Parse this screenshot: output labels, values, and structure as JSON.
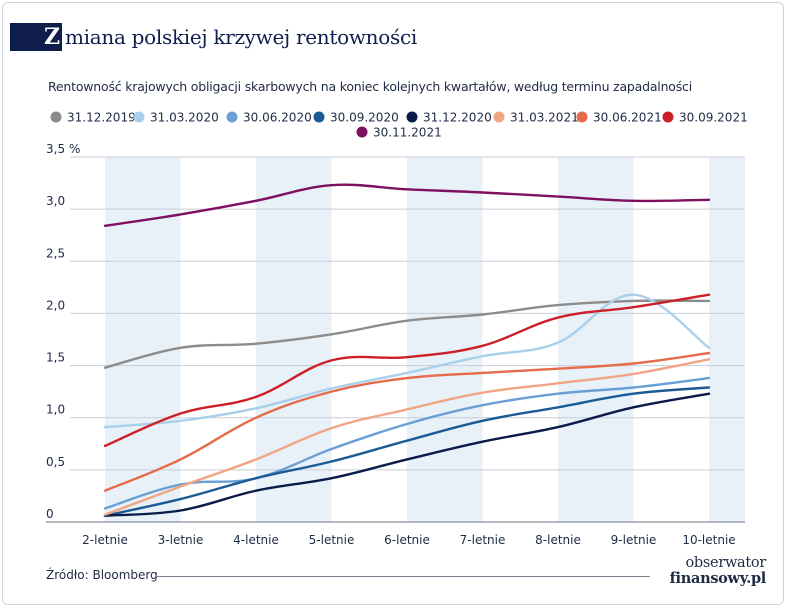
{
  "title_initial": "Z",
  "title_rest": "miana polskiej krzywej rentowności",
  "subtitle": "Rentowność krajowych obligacji skarbowych na koniec kolejnych kwartałów, według terminu zapadalności",
  "source": "Źródło: Bloomberg",
  "logo_line1": "obserwator",
  "logo_line2": "finansowy.pl",
  "colors": {
    "title_block": "#0f1d4d",
    "band": "#e8f0f8",
    "grid": "#c9ced8"
  },
  "chart_data": {
    "type": "line",
    "title": "Zmiana polskiej krzywej rentowności",
    "subtitle": "Rentowność krajowych obligacji skarbowych na koniec kolejnych kwartałów, według terminu zapadalności",
    "xlabel": "",
    "ylabel": "%",
    "ylim": [
      0,
      3.5
    ],
    "yticks": [
      "0",
      "0,5",
      "1,0",
      "1,5",
      "2,0",
      "2,5",
      "3,0",
      "3,5"
    ],
    "ytick_values": [
      0,
      0.5,
      1.0,
      1.5,
      2.0,
      2.5,
      3.0,
      3.5
    ],
    "y_unit": "%",
    "categories": [
      "2-letnie",
      "3-letnie",
      "4-letnie",
      "5-letnie",
      "6-letnie",
      "7-letnie",
      "8-letnie",
      "9-letnie",
      "10-letnie"
    ],
    "legend_position": "top",
    "series": [
      {
        "name": "31.12.2019",
        "color": "#8c8c8c",
        "values": [
          1.48,
          1.67,
          1.71,
          1.8,
          1.93,
          1.99,
          2.08,
          2.12,
          2.12
        ]
      },
      {
        "name": "31.03.2020",
        "color": "#a9d0ea",
        "values": [
          0.91,
          0.97,
          1.09,
          1.28,
          1.43,
          1.59,
          1.72,
          2.18,
          1.67
        ]
      },
      {
        "name": "30.06.2020",
        "color": "#6a9fd3",
        "values": [
          0.13,
          0.36,
          0.42,
          0.7,
          0.94,
          1.12,
          1.23,
          1.29,
          1.38
        ]
      },
      {
        "name": "30.09.2020",
        "color": "#1a5b96",
        "values": [
          0.06,
          0.22,
          0.42,
          0.58,
          0.78,
          0.97,
          1.1,
          1.23,
          1.29
        ]
      },
      {
        "name": "31.12.2020",
        "color": "#0a1a4a",
        "values": [
          0.06,
          0.11,
          0.3,
          0.42,
          0.6,
          0.77,
          0.91,
          1.1,
          1.23
        ]
      },
      {
        "name": "31.03.2021",
        "color": "#f0a583",
        "values": [
          0.07,
          0.34,
          0.6,
          0.9,
          1.08,
          1.24,
          1.33,
          1.42,
          1.56
        ]
      },
      {
        "name": "30.06.2021",
        "color": "#e56b4b",
        "values": [
          0.3,
          0.6,
          1.0,
          1.25,
          1.38,
          1.43,
          1.47,
          1.52,
          1.62
        ]
      },
      {
        "name": "30.09.2021",
        "color": "#cc1f27",
        "values": [
          0.73,
          1.04,
          1.2,
          1.55,
          1.58,
          1.69,
          1.96,
          2.06,
          2.18
        ]
      },
      {
        "name": "30.11.2021",
        "color": "#7e1060",
        "values": [
          2.84,
          2.95,
          3.08,
          3.23,
          3.19,
          3.16,
          3.12,
          3.08,
          3.09
        ]
      }
    ]
  }
}
